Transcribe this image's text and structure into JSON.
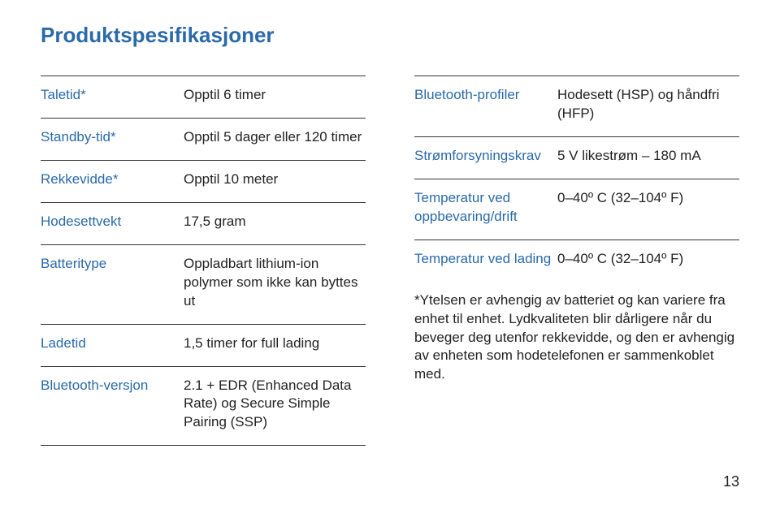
{
  "title": "Produktspesifikasjoner",
  "left_specs": [
    {
      "label": "Taletid*",
      "value": "Opptil 6 timer"
    },
    {
      "label": "Standby-tid*",
      "value": "Opptil 5 dager eller 120 timer"
    },
    {
      "label": "Rekkevidde*",
      "value": "Opptil 10 meter"
    },
    {
      "label": "Hodesettvekt",
      "value": "17,5 gram"
    },
    {
      "label": "Batteritype",
      "value": "Oppladbart lithium-ion polymer som ikke kan byttes ut"
    },
    {
      "label": "Ladetid",
      "value": "1,5 timer for full lading"
    },
    {
      "label": "Bluetooth-versjon",
      "value": "2.1 + EDR (Enhanced Data Rate) og Secure Simple Pairing (SSP)"
    }
  ],
  "right_specs": [
    {
      "label": "Bluetooth-profiler",
      "value": "Hodesett (HSP) og håndfri (HFP)"
    },
    {
      "label": "Strømforsyningskrav",
      "value": "5 V likestrøm – 180 mA"
    },
    {
      "label": "Temperatur ved oppbevaring/drift",
      "value": "0–40º C (32–104º F)"
    },
    {
      "label": "Temperatur ved lading",
      "value": "0–40º C (32–104º F)"
    }
  ],
  "footnote": "*Ytelsen er avhengig av batteriet og kan variere fra enhet til enhet. Lydkvaliteten blir dårligere når du beveger deg utenfor rekkevidde, og den er avhengig av enheten som hodetelefonen er sammenkoblet med.",
  "page_number": "13",
  "colors": {
    "accent": "#2a6aa8",
    "text": "#222222",
    "border": "#333333",
    "background": "#ffffff"
  },
  "font_sizes": {
    "title": 26,
    "body": 17,
    "page_number": 18
  }
}
